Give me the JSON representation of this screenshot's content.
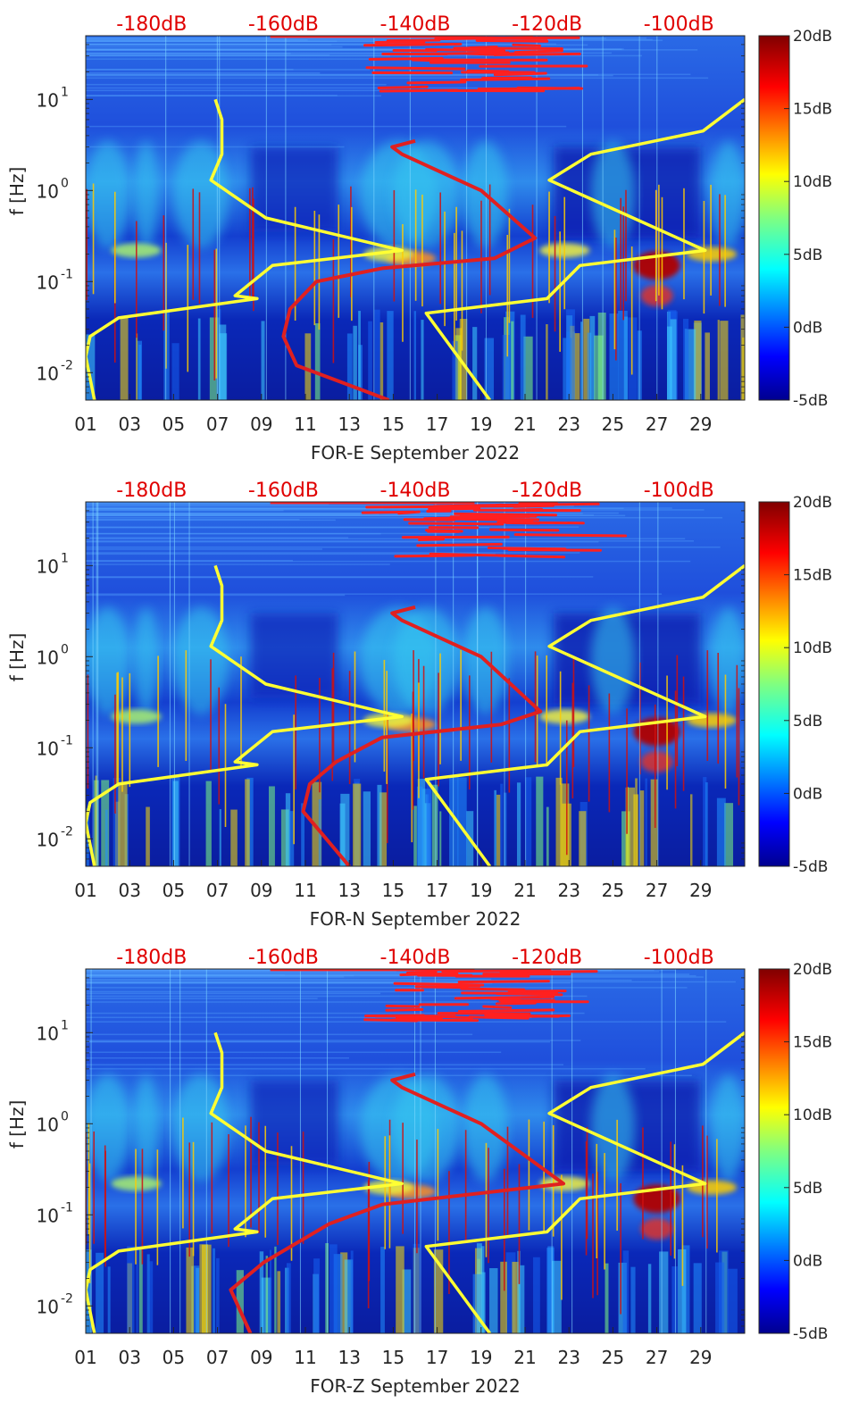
{
  "chart_data": [
    {
      "type": "heatmap",
      "title": "",
      "xlabel": "FOR-E September 2022",
      "ylabel": "f [Hz]",
      "x_ticks": [
        "01",
        "03",
        "05",
        "07",
        "09",
        "11",
        "13",
        "15",
        "17",
        "19",
        "21",
        "23",
        "25",
        "27",
        "29"
      ],
      "xlim": [
        1,
        31
      ],
      "y_ticks": [
        {
          "value": 0.01,
          "base": "10",
          "exp": "-2"
        },
        {
          "value": 0.1,
          "base": "10",
          "exp": "-1"
        },
        {
          "value": 1,
          "base": "10",
          "exp": "0"
        },
        {
          "value": 10,
          "base": "10",
          "exp": "1"
        }
      ],
      "ylim": [
        0.005,
        50
      ],
      "y_scale": "log",
      "top_axis_ticks": [
        "-180dB",
        "-160dB",
        "-140dB",
        "-120dB",
        "-100dB"
      ],
      "top_axis_range": [
        -190,
        -90
      ],
      "colorbar": {
        "ticks": [
          "20dB",
          "15dB",
          "10dB",
          "5dB",
          "0dB",
          "-5dB"
        ],
        "range": [
          -5,
          20
        ]
      },
      "series": [
        {
          "color": "#ffff33",
          "points": [
            [
              6.9,
              10
            ],
            [
              7.2,
              6
            ],
            [
              7.2,
              2.5
            ],
            [
              6.7,
              1.3
            ],
            [
              9.2,
              0.5
            ],
            [
              15.4,
              0.22
            ],
            [
              9.5,
              0.15
            ],
            [
              7.8,
              0.07
            ],
            [
              8.8,
              0.065
            ],
            [
              2.5,
              0.04
            ],
            [
              1.2,
              0.025
            ],
            [
              1,
              0.015
            ],
            [
              1.4,
              0.005
            ]
          ]
        },
        {
          "color": "#ffff33",
          "points": [
            [
              31,
              10
            ],
            [
              29.1,
              4.5
            ],
            [
              24,
              2.5
            ],
            [
              22.1,
              1.3
            ],
            [
              29.2,
              0.22
            ],
            [
              23.5,
              0.15
            ],
            [
              22,
              0.065
            ],
            [
              16.5,
              0.045
            ],
            [
              19.4,
              0.005
            ]
          ]
        },
        {
          "color": "#e02020",
          "points": [
            [
              -140,
              3.5
            ],
            [
              -143.5,
              3
            ],
            [
              -142,
              2.5
            ],
            [
              -130,
              1
            ],
            [
              -121.8,
              0.3
            ],
            [
              -128,
              0.18
            ],
            [
              -145,
              0.14
            ],
            [
              -155,
              0.1
            ],
            [
              -159,
              0.05
            ],
            [
              -160,
              0.025
            ],
            [
              -158,
              0.012
            ],
            [
              -144,
              0.005
            ]
          ]
        }
      ]
    },
    {
      "type": "heatmap",
      "title": "",
      "xlabel": "FOR-N September 2022",
      "ylabel": "f [Hz]",
      "x_ticks": [
        "01",
        "03",
        "05",
        "07",
        "09",
        "11",
        "13",
        "15",
        "17",
        "19",
        "21",
        "23",
        "25",
        "27",
        "29"
      ],
      "xlim": [
        1,
        31
      ],
      "y_ticks": [
        {
          "value": 0.01,
          "base": "10",
          "exp": "-2"
        },
        {
          "value": 0.1,
          "base": "10",
          "exp": "-1"
        },
        {
          "value": 1,
          "base": "10",
          "exp": "0"
        },
        {
          "value": 10,
          "base": "10",
          "exp": "1"
        }
      ],
      "ylim": [
        0.005,
        50
      ],
      "y_scale": "log",
      "top_axis_ticks": [
        "-180dB",
        "-160dB",
        "-140dB",
        "-120dB",
        "-100dB"
      ],
      "top_axis_range": [
        -190,
        -90
      ],
      "colorbar": {
        "ticks": [
          "20dB",
          "15dB",
          "10dB",
          "5dB",
          "0dB",
          "-5dB"
        ],
        "range": [
          -5,
          20
        ]
      },
      "series": [
        {
          "color": "#ffff33",
          "points": [
            [
              6.9,
              10
            ],
            [
              7.2,
              6
            ],
            [
              7.2,
              2.5
            ],
            [
              6.7,
              1.3
            ],
            [
              9.2,
              0.5
            ],
            [
              15.4,
              0.22
            ],
            [
              9.5,
              0.15
            ],
            [
              7.8,
              0.07
            ],
            [
              8.8,
              0.065
            ],
            [
              2.5,
              0.04
            ],
            [
              1.2,
              0.025
            ],
            [
              1,
              0.015
            ],
            [
              1.4,
              0.005
            ]
          ]
        },
        {
          "color": "#ffff33",
          "points": [
            [
              31,
              10
            ],
            [
              29.1,
              4.5
            ],
            [
              24,
              2.5
            ],
            [
              22.1,
              1.3
            ],
            [
              29.2,
              0.22
            ],
            [
              23.5,
              0.15
            ],
            [
              22,
              0.065
            ],
            [
              16.5,
              0.045
            ],
            [
              19.4,
              0.005
            ]
          ]
        },
        {
          "color": "#e02020",
          "points": [
            [
              -140,
              3.5
            ],
            [
              -143.5,
              3
            ],
            [
              -142,
              2.5
            ],
            [
              -130,
              1
            ],
            [
              -121,
              0.25
            ],
            [
              -127,
              0.18
            ],
            [
              -145,
              0.13
            ],
            [
              -152,
              0.07
            ],
            [
              -156,
              0.04
            ],
            [
              -157,
              0.02
            ],
            [
              -150,
              0.005
            ]
          ]
        }
      ]
    },
    {
      "type": "heatmap",
      "title": "",
      "xlabel": "FOR-Z September 2022",
      "ylabel": "f [Hz]",
      "x_ticks": [
        "01",
        "03",
        "05",
        "07",
        "09",
        "11",
        "13",
        "15",
        "17",
        "19",
        "21",
        "23",
        "25",
        "27",
        "29"
      ],
      "xlim": [
        1,
        31
      ],
      "y_ticks": [
        {
          "value": 0.01,
          "base": "10",
          "exp": "-2"
        },
        {
          "value": 0.1,
          "base": "10",
          "exp": "-1"
        },
        {
          "value": 1,
          "base": "10",
          "exp": "0"
        },
        {
          "value": 10,
          "base": "10",
          "exp": "1"
        }
      ],
      "ylim": [
        0.005,
        50
      ],
      "y_scale": "log",
      "top_axis_ticks": [
        "-180dB",
        "-160dB",
        "-140dB",
        "-120dB",
        "-100dB"
      ],
      "top_axis_range": [
        -190,
        -90
      ],
      "colorbar": {
        "ticks": [
          "20dB",
          "15dB",
          "10dB",
          "5dB",
          "0dB",
          "-5dB"
        ],
        "range": [
          -5,
          20
        ]
      },
      "series": [
        {
          "color": "#ffff33",
          "points": [
            [
              6.9,
              10
            ],
            [
              7.2,
              6
            ],
            [
              7.2,
              2.5
            ],
            [
              6.7,
              1.3
            ],
            [
              9.2,
              0.5
            ],
            [
              15.4,
              0.22
            ],
            [
              9.5,
              0.15
            ],
            [
              7.8,
              0.07
            ],
            [
              8.8,
              0.065
            ],
            [
              2.5,
              0.04
            ],
            [
              1.2,
              0.025
            ],
            [
              1,
              0.015
            ],
            [
              1.4,
              0.005
            ]
          ]
        },
        {
          "color": "#ffff33",
          "points": [
            [
              31,
              10
            ],
            [
              29.1,
              4.5
            ],
            [
              24,
              2.5
            ],
            [
              22.1,
              1.3
            ],
            [
              29.2,
              0.22
            ],
            [
              23.5,
              0.15
            ],
            [
              22,
              0.065
            ],
            [
              16.5,
              0.045
            ],
            [
              19.4,
              0.005
            ]
          ]
        },
        {
          "color": "#e02020",
          "points": [
            [
              -140,
              3.5
            ],
            [
              -143.5,
              3
            ],
            [
              -142,
              2.5
            ],
            [
              -130,
              1
            ],
            [
              -117.5,
              0.22
            ],
            [
              -128,
              0.18
            ],
            [
              -145,
              0.13
            ],
            [
              -153,
              0.08
            ],
            [
              -163,
              0.03
            ],
            [
              -168,
              0.015
            ],
            [
              -165,
              0.005
            ]
          ]
        }
      ]
    }
  ]
}
